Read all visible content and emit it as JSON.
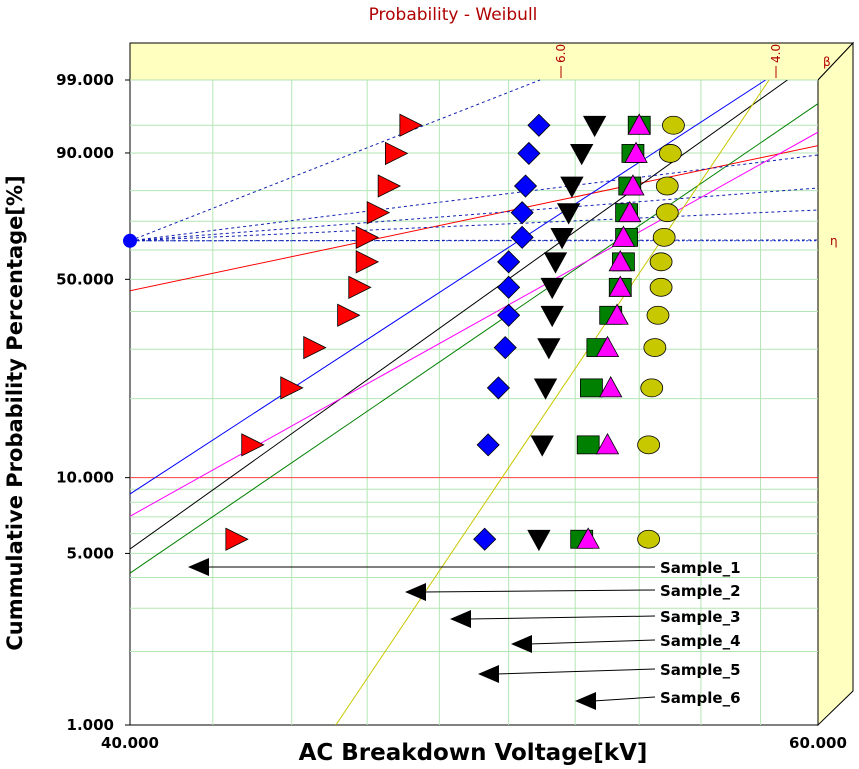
{
  "title": "Probability - Weibull",
  "chart_data": {
    "type": "scatter",
    "title": "Probability - Weibull",
    "xlabel": "AC Breakdown Voltage[kV]",
    "ylabel": "Cummulative Probability Percentage[%]",
    "x_scale": "log",
    "y_scale": "weibull",
    "xlim": [
      40,
      60
    ],
    "ylim": [
      1,
      99
    ],
    "x_ticks": [
      "40.000",
      "60.000"
    ],
    "y_ticks": [
      "1.000",
      "5.000",
      "10.000",
      "50.000",
      "90.000",
      "99.000"
    ],
    "beta_ticks": [
      "6.0",
      "4.0"
    ],
    "beta_label": "β",
    "eta_label": "η",
    "grid": true,
    "legend": "callout labels with arrows, lower right",
    "series": [
      {
        "name": "Sample_1",
        "marker": "triangle-right",
        "color": "#ff0000",
        "y": [
          5.7,
          13.4,
          21.9,
          30.4,
          38.9,
          47.4,
          55.9,
          64.4,
          72.9,
          81.4,
          89.9,
          95.0
        ],
        "x": [
          42.6,
          43.0,
          44.0,
          44.6,
          45.5,
          45.8,
          46.0,
          46.0,
          46.3,
          46.6,
          46.8,
          47.2
        ],
        "fit": {
          "beta": 3.4,
          "eta": 46.0
        }
      },
      {
        "name": "Sample_2",
        "marker": "diamond",
        "color": "#0000ff",
        "y": [
          5.7,
          13.4,
          21.9,
          30.4,
          38.9,
          47.4,
          55.9,
          64.4,
          72.9,
          81.4,
          89.9,
          95.0
        ],
        "x": [
          49.3,
          49.4,
          49.7,
          49.9,
          50.0,
          50.0,
          50.0,
          50.4,
          50.4,
          50.5,
          50.6,
          50.9
        ],
        "fit": {
          "beta": 10.5,
          "eta": 50.3
        }
      },
      {
        "name": "Sample_3",
        "marker": "triangle-down",
        "color": "#000000",
        "y": [
          5.7,
          13.4,
          21.9,
          30.4,
          38.9,
          47.4,
          55.9,
          64.4,
          72.9,
          81.4,
          89.9,
          95.0
        ],
        "x": [
          50.9,
          51.0,
          51.1,
          51.2,
          51.3,
          51.3,
          51.4,
          51.6,
          51.8,
          51.9,
          52.2,
          52.6
        ],
        "fit": {
          "beta": 11.5,
          "eta": 51.6
        }
      },
      {
        "name": "Sample_4",
        "marker": "square",
        "color": "#008000",
        "y": [
          5.7,
          13.4,
          21.9,
          30.4,
          38.9,
          47.4,
          55.9,
          64.4,
          72.9,
          81.4,
          89.9,
          95.0
        ],
        "x": [
          52.2,
          52.4,
          52.5,
          52.7,
          53.1,
          53.4,
          53.5,
          53.6,
          53.6,
          53.7,
          53.8,
          54.0
        ],
        "fit": {
          "beta": 11.0,
          "eta": 53.3
        }
      },
      {
        "name": "Sample_5",
        "marker": "triangle-up",
        "color": "#ff00ff",
        "y": [
          5.7,
          13.4,
          21.9,
          30.4,
          38.9,
          47.4,
          55.9,
          64.4,
          72.9,
          81.4,
          89.9,
          95.0
        ],
        "x": [
          52.4,
          53.0,
          53.1,
          53.0,
          53.3,
          53.4,
          53.4,
          53.5,
          53.7,
          53.8,
          53.9,
          54.0
        ],
        "fit": {
          "beta": 9.0,
          "eta": 53.5
        }
      },
      {
        "name": "Sample_6",
        "marker": "circle",
        "color": "#c8c800",
        "y": [
          5.7,
          13.4,
          21.9,
          30.4,
          38.9,
          47.4,
          55.9,
          64.4,
          72.9,
          81.4,
          89.9,
          95.0
        ],
        "x": [
          54.3,
          54.3,
          54.4,
          54.5,
          54.6,
          54.7,
          54.7,
          54.8,
          54.9,
          54.9,
          55.0,
          55.1
        ],
        "fit": {
          "beta": 24.0,
          "eta": 54.7
        }
      }
    ]
  }
}
